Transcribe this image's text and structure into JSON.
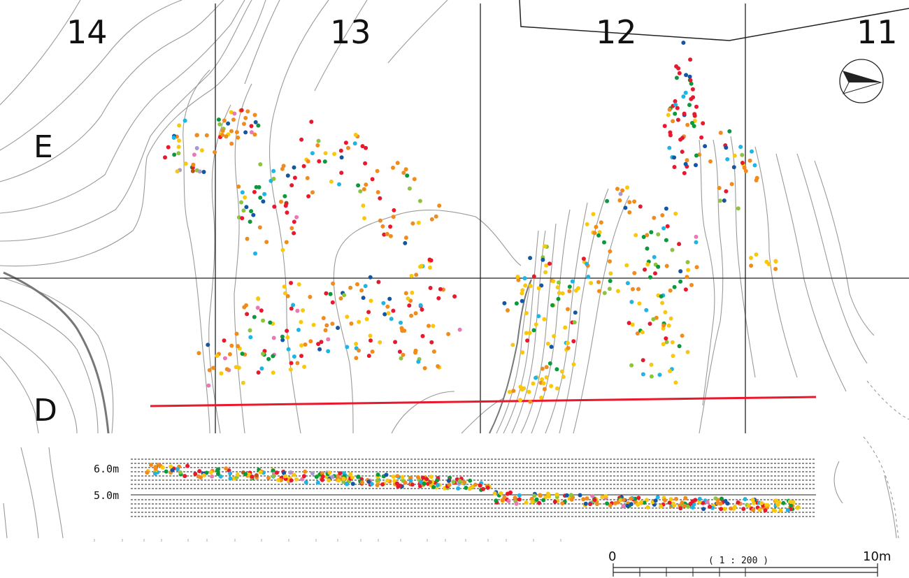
{
  "grid": {
    "columns": [
      "14",
      "13",
      "12",
      "11"
    ],
    "rows": [
      "E",
      "D"
    ]
  },
  "section": {
    "levels": [
      "6.0m",
      "5.0m"
    ]
  },
  "scale": {
    "start": "0",
    "end": "10m",
    "ratio": "( 1 : 200 )"
  },
  "colors": {
    "artifact_types": [
      "#f08c1e",
      "#e8192c",
      "#f9c80e",
      "#1fb4e4",
      "#0a9a3c",
      "#1556a4",
      "#8cc43c",
      "#e879b4",
      "#a89ad0",
      "#b8531e"
    ],
    "section_line": "#e8192c",
    "contour": "#9a9a9a",
    "grid": "#222222"
  },
  "icons": {
    "north": "north-arrow-icon"
  }
}
